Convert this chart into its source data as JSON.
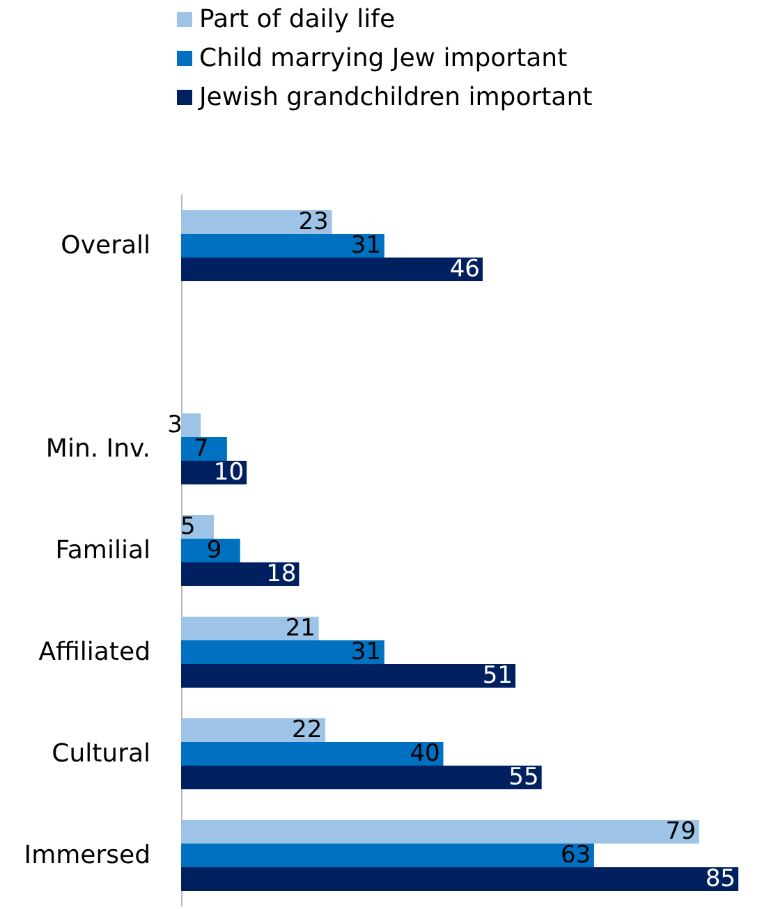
{
  "chart_data": {
    "type": "bar",
    "orientation": "horizontal",
    "categories": [
      "Overall",
      null,
      "Min. Inv.",
      "Familial",
      "Affiliated",
      "Cultural",
      "Immersed"
    ],
    "series": [
      {
        "name": "Part of daily life",
        "color": "#9dc3e6",
        "values": [
          23,
          null,
          3,
          5,
          21,
          22,
          79
        ]
      },
      {
        "name": "Child marrying Jew important",
        "color": "#0070c0",
        "values": [
          31,
          null,
          7,
          9,
          31,
          40,
          63
        ]
      },
      {
        "name": "Jewish grandchildren important",
        "color": "#002060",
        "values": [
          46,
          null,
          10,
          18,
          51,
          55,
          85
        ]
      }
    ],
    "data_labels": true,
    "legend": "top"
  }
}
